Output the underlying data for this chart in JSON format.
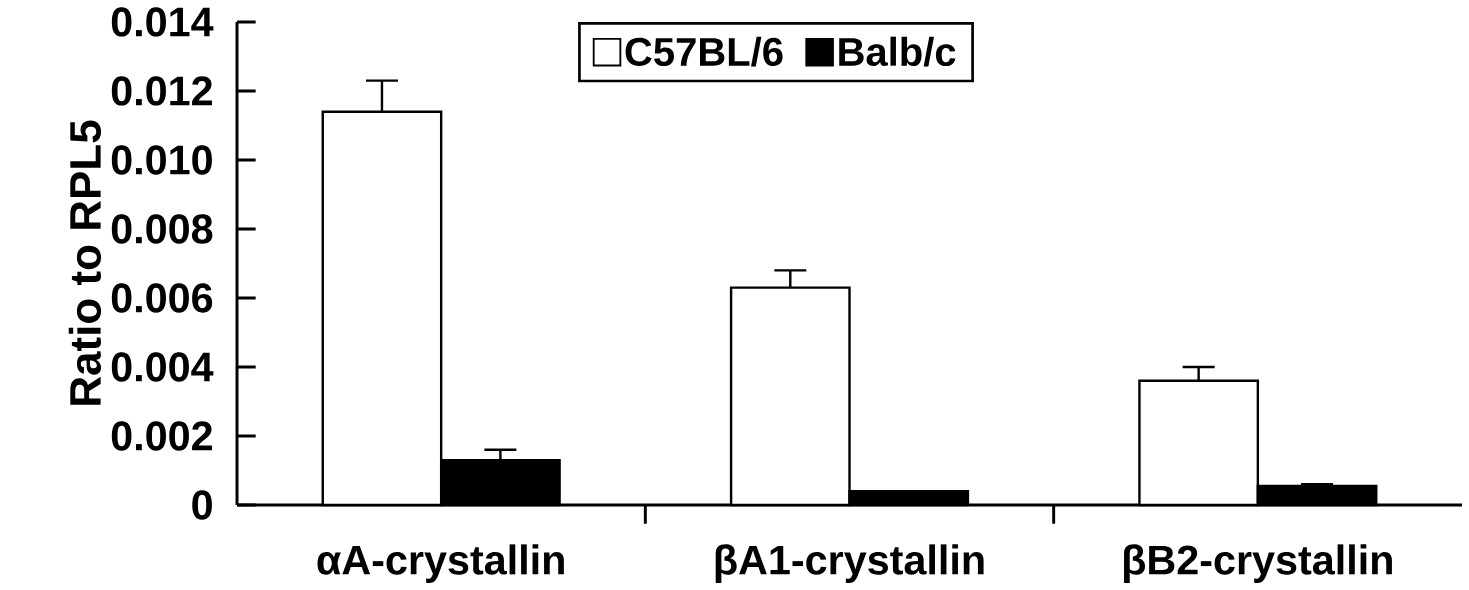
{
  "chart_data": {
    "type": "bar",
    "ylabel": "Ratio to RPL5",
    "categories": [
      "αA-crystallin",
      "βA1-crystallin",
      "βB2-crystallin"
    ],
    "series": [
      {
        "name": "C57BL/6",
        "color": "#ffffff",
        "values": [
          0.0114,
          0.0063,
          0.0036
        ],
        "errors": [
          [
            0.0114,
            0.0123
          ],
          [
            0.0063,
            0.0068
          ],
          [
            0.0036,
            0.004
          ]
        ]
      },
      {
        "name": "Balb/c",
        "color": "#000000",
        "values": [
          0.0013,
          0.0004,
          0.00055
        ],
        "errors": [
          [
            0.0013,
            0.0016
          ],
          null,
          [
            0.00055,
            0.0006
          ]
        ]
      }
    ],
    "ylim": [
      0,
      0.014
    ],
    "yticks": [
      0,
      0.002,
      0.004,
      0.006,
      0.008,
      {
        "value": 0.01,
        "label": "0.010"
      },
      0.012,
      0.014
    ],
    "legend": "top",
    "grid": false
  }
}
